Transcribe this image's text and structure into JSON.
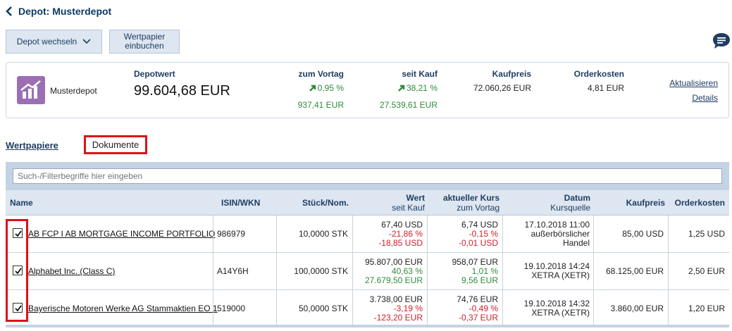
{
  "header": {
    "title": "Depot: Musterdepot"
  },
  "toolbar": {
    "depot_switch_label": "Depot wechseln",
    "book_security_label_line1": "Wertpapier",
    "book_security_label_line2": "einbuchen"
  },
  "summary": {
    "depot_name": "Musterdepot",
    "depotwert_label": "Depotwert",
    "depotwert_value": "99.604,68 EUR",
    "vortag_label": "zum Vortag",
    "vortag_pct": "0,95 %",
    "vortag_abs": "937,41 EUR",
    "seitkauf_label": "seit Kauf",
    "seitkauf_pct": "38,21 %",
    "seitkauf_abs": "27.539,61 EUR",
    "kaufpreis_label": "Kaufpreis",
    "kaufpreis_value": "72.060,26 EUR",
    "orderkosten_label": "Orderkosten",
    "orderkosten_value": "4,81 EUR",
    "refresh_link": "Aktualisieren",
    "details_link": "Details"
  },
  "tabs": {
    "securities": "Wertpapiere",
    "documents": "Dokumente"
  },
  "filter": {
    "placeholder": "Such-/Filterbegriffe hier eingeben"
  },
  "table": {
    "headers": {
      "name": "Name",
      "isin": "ISIN/WKN",
      "stueck": "Stück/Nom.",
      "wert": "Wert",
      "wert_sub": "seit Kauf",
      "kurs": "aktueller Kurs",
      "kurs_sub": "zum Vortag",
      "datum": "Datum",
      "datum_sub": "Kursquelle",
      "kaufpreis": "Kaufpreis",
      "orderkosten": "Orderkosten"
    },
    "rows": [
      {
        "name": "AB FCP I AB MORTGAGE INCOME PORTFOLIO",
        "isin": "986979",
        "stueck": "10,0000 STK",
        "wert": "67,40 USD",
        "wert_pct": "-21,86 %",
        "wert_abs": "-18,85 USD",
        "kurs": "6,74 USD",
        "kurs_pct": "-0,15 %",
        "kurs_abs": "-0,01 USD",
        "datum": "17.10.2018 11:00",
        "quelle": "außerbörslicher Handel",
        "kaufpreis": "85,00 USD",
        "orderkosten": "1,25 USD"
      },
      {
        "name": "Alphabet Inc. (Class C)",
        "isin": "A14Y6H",
        "stueck": "100,0000 STK",
        "wert": "95.807,00 EUR",
        "wert_pct": "40,63 %",
        "wert_abs": "27.679,50 EUR",
        "kurs": "958,07 EUR",
        "kurs_pct": "1,01 %",
        "kurs_abs": "9,56 EUR",
        "datum": "19.10.2018 14:24",
        "quelle": "XETRA (XETR)",
        "kaufpreis": "68.125,00 EUR",
        "orderkosten": "2,50 EUR"
      },
      {
        "name": "Bayerische Motoren Werke AG Stammaktien EO 1",
        "isin": "519000",
        "stueck": "50,0000 STK",
        "wert": "3.738,00 EUR",
        "wert_pct": "-3,19 %",
        "wert_abs": "-123,20 EUR",
        "kurs": "74,76 EUR",
        "kurs_pct": "-0,49 %",
        "kurs_abs": "-0,37 EUR",
        "datum": "19.10.2018 14:32",
        "quelle": "XETRA (XETR)",
        "kaufpreis": "3.860,00 EUR",
        "orderkosten": "1,20 EUR"
      }
    ]
  },
  "colors": {
    "accent": "#1f3d62",
    "positive": "#2f8a3b",
    "negative": "#d0202b",
    "highlight": "#e0101a",
    "logo": "#9b6fb3"
  }
}
